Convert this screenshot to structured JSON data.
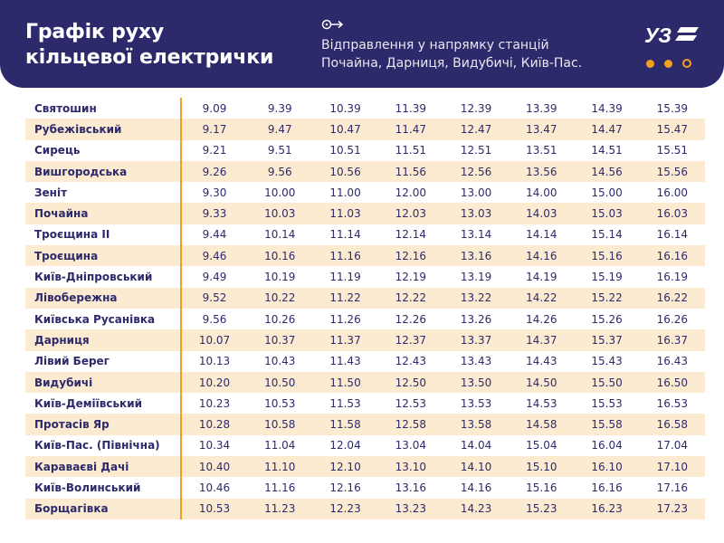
{
  "header": {
    "title_line1": "Графік руху",
    "title_line2": "кільцевої електрички",
    "subtitle_line1": "Відправлення у напрямку станцій",
    "subtitle_line2": "Почайна, Дарниця, Видубичі, Київ-Пас.",
    "logo_text": "УЗ",
    "brand_color": "#2d2a6b",
    "accent_color": "#f29f1d"
  },
  "schedule": [
    {
      "station": "Святошин",
      "times": [
        "9.09",
        "9.39",
        "10.39",
        "11.39",
        "12.39",
        "13.39",
        "14.39",
        "15.39"
      ]
    },
    {
      "station": "Рубежівський",
      "times": [
        "9.17",
        "9.47",
        "10.47",
        "11.47",
        "12.47",
        "13.47",
        "14.47",
        "15.47"
      ]
    },
    {
      "station": "Сирець",
      "times": [
        "9.21",
        "9.51",
        "10.51",
        "11.51",
        "12.51",
        "13.51",
        "14.51",
        "15.51"
      ]
    },
    {
      "station": "Вишгородська",
      "times": [
        "9.26",
        "9.56",
        "10.56",
        "11.56",
        "12.56",
        "13.56",
        "14.56",
        "15.56"
      ]
    },
    {
      "station": "Зеніт",
      "times": [
        "9.30",
        "10.00",
        "11.00",
        "12.00",
        "13.00",
        "14.00",
        "15.00",
        "16.00"
      ]
    },
    {
      "station": "Почайна",
      "times": [
        "9.33",
        "10.03",
        "11.03",
        "12.03",
        "13.03",
        "14.03",
        "15.03",
        "16.03"
      ]
    },
    {
      "station": "Троєщина II",
      "times": [
        "9.44",
        "10.14",
        "11.14",
        "12.14",
        "13.14",
        "14.14",
        "15.14",
        "16.14"
      ]
    },
    {
      "station": "Троєщина",
      "times": [
        "9.46",
        "10.16",
        "11.16",
        "12.16",
        "13.16",
        "14.16",
        "15.16",
        "16.16"
      ]
    },
    {
      "station": "Київ-Дніпровський",
      "times": [
        "9.49",
        "10.19",
        "11.19",
        "12.19",
        "13.19",
        "14.19",
        "15.19",
        "16.19"
      ]
    },
    {
      "station": "Лівобережна",
      "times": [
        "9.52",
        "10.22",
        "11.22",
        "12.22",
        "13.22",
        "14.22",
        "15.22",
        "16.22"
      ]
    },
    {
      "station": "Київська Русанівка",
      "times": [
        "9.56",
        "10.26",
        "11.26",
        "12.26",
        "13.26",
        "14.26",
        "15.26",
        "16.26"
      ]
    },
    {
      "station": "Дарниця",
      "times": [
        "10.07",
        "10.37",
        "11.37",
        "12.37",
        "13.37",
        "14.37",
        "15.37",
        "16.37"
      ]
    },
    {
      "station": "Лівий Берег",
      "times": [
        "10.13",
        "10.43",
        "11.43",
        "12.43",
        "13.43",
        "14.43",
        "15.43",
        "16.43"
      ]
    },
    {
      "station": "Видубичі",
      "times": [
        "10.20",
        "10.50",
        "11.50",
        "12.50",
        "13.50",
        "14.50",
        "15.50",
        "16.50"
      ]
    },
    {
      "station": "Київ-Деміївський",
      "times": [
        "10.23",
        "10.53",
        "11.53",
        "12.53",
        "13.53",
        "14.53",
        "15.53",
        "16.53"
      ]
    },
    {
      "station": "Протасів Яр",
      "times": [
        "10.28",
        "10.58",
        "11.58",
        "12.58",
        "13.58",
        "14.58",
        "15.58",
        "16.58"
      ]
    },
    {
      "station": "Київ-Пас. (Північна)",
      "times": [
        "10.34",
        "11.04",
        "12.04",
        "13.04",
        "14.04",
        "15.04",
        "16.04",
        "17.04"
      ]
    },
    {
      "station": "Караваєві Дачі",
      "times": [
        "10.40",
        "11.10",
        "12.10",
        "13.10",
        "14.10",
        "15.10",
        "16.10",
        "17.10"
      ]
    },
    {
      "station": "Київ-Волинський",
      "times": [
        "10.46",
        "11.16",
        "12.16",
        "13.16",
        "14.16",
        "15.16",
        "16.16",
        "17.16"
      ]
    },
    {
      "station": "Борщагівка",
      "times": [
        "10.53",
        "11.23",
        "12.23",
        "13.23",
        "14.23",
        "15.23",
        "16.23",
        "17.23"
      ]
    }
  ]
}
